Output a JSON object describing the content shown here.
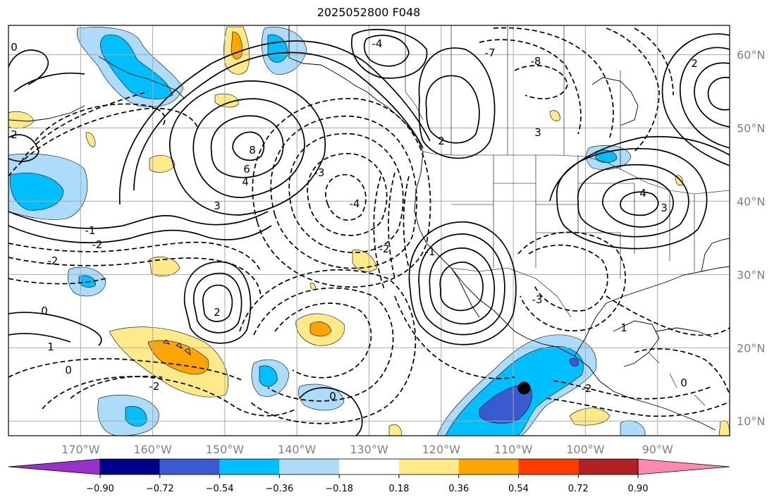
{
  "title": "2025052800 F048",
  "map": {
    "lon_range": [
      -180,
      -80
    ],
    "lat_range": [
      8,
      64
    ],
    "lon_labels": [
      "170°W",
      "160°W",
      "150°W",
      "140°W",
      "130°W",
      "120°W",
      "110°W",
      "100°W",
      "90°W"
    ],
    "lat_labels": [
      "60°N",
      "50°N",
      "40°N",
      "30°N",
      "20°N",
      "10°N"
    ],
    "marker": {
      "name": "storm-center-dot",
      "lon": -108.5,
      "lat": 14.5
    },
    "contour_labels": [
      "0",
      "1",
      "2",
      "2",
      "3",
      "4",
      "6",
      "8",
      "-1",
      "-2",
      "-2",
      "-3",
      "-4",
      "0",
      "0",
      "3",
      "1",
      "-1",
      "-2",
      "-2",
      "2",
      "0",
      "3",
      "4",
      "-3",
      "-8",
      "-7",
      "-4",
      "-2",
      "0",
      "2"
    ]
  },
  "colorbar": {
    "ticks": [
      "−0.90",
      "−0.72",
      "−0.54",
      "−0.36",
      "−0.18",
      "0.18",
      "0.36",
      "0.54",
      "0.72",
      "0.90"
    ],
    "colors": {
      "under": "#9932CC",
      "bins": [
        "#00008B",
        "#3A5BD0",
        "#00BFFF",
        "#ADDCFA",
        "#FFFFFF",
        "#FFEA8A",
        "#FFA500",
        "#FF3C00",
        "#B22222"
      ],
      "over": "#FF8AB0"
    }
  }
}
